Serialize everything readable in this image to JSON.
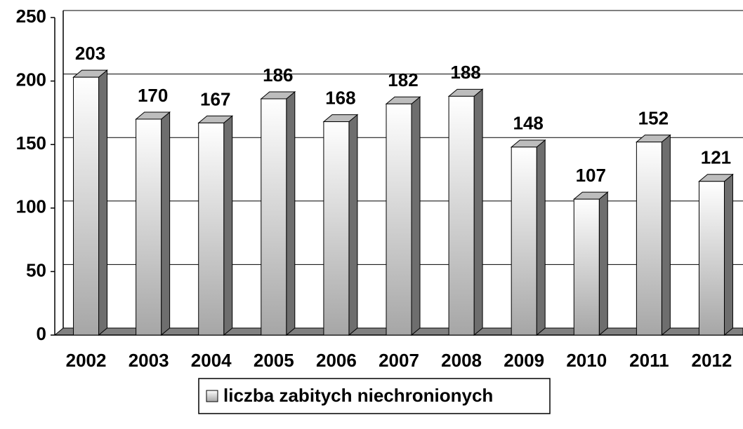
{
  "chart_data": {
    "type": "bar3d",
    "categories": [
      "2002",
      "2003",
      "2004",
      "2005",
      "2006",
      "2007",
      "2008",
      "2009",
      "2010",
      "2011",
      "2012"
    ],
    "series": [
      {
        "name": "liczba zabitych niechronionych",
        "color": "#a6a6a6",
        "values": [
          203,
          170,
          167,
          186,
          168,
          182,
          188,
          148,
          107,
          152,
          121
        ]
      }
    ],
    "ylim": [
      0,
      250
    ],
    "yticks": [
      0,
      50,
      100,
      150,
      200,
      250
    ],
    "grid": true,
    "legend": "bottom"
  }
}
